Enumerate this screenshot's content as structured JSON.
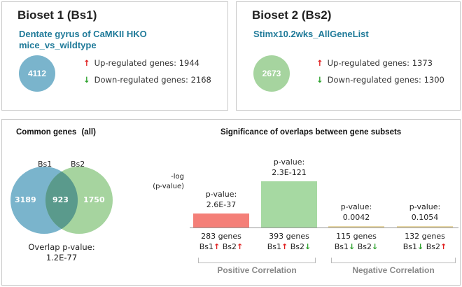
{
  "bioset1": {
    "title": "Bioset 1 (Bs1)",
    "name_line1": "Dentate gyrus of CaMKII HKO",
    "name_line2": "mice_vs_wildtype",
    "total": "4112",
    "up_label": "Up-regulated genes: 1944",
    "down_label": "Down-regulated genes: 2168",
    "circle_color": "#7ab4cc"
  },
  "bioset2": {
    "title": "Bioset 2 (Bs2)",
    "name": "Stimx10.2wks_AllGeneList",
    "total": "2673",
    "up_label": "Up-regulated genes: 1373",
    "down_label": "Down-regulated genes: 1300",
    "circle_color": "#a6d49f"
  },
  "common": {
    "title": "Common genes",
    "title_suffix": "(all)",
    "label_bs1": "Bs1",
    "label_bs2": "Bs2",
    "only_bs1": "3189",
    "overlap": "923",
    "only_bs2": "1750",
    "overlap_pvalue_label": "Overlap p-value:",
    "overlap_pvalue": "1.2E-77"
  },
  "significance": {
    "title": "Significance of overlaps between gene subsets",
    "ylabel_line1": "-log",
    "ylabel_line2": "(p-value)",
    "positive_label": "Positive Correlation",
    "negative_label": "Negative Correlation",
    "pvalue_label": "p-value:",
    "bs1_label": "Bs1",
    "bs2_label": "Bs2"
  },
  "chart_data": {
    "type": "bar",
    "categories": [
      "Bs1 up, Bs2 up",
      "Bs1 up, Bs2 down",
      "Bs1 down, Bs2 down",
      "Bs1 down, Bs2 up"
    ],
    "series": [
      {
        "values_neg_log_p": [
          36.58,
          120.64,
          2.38,
          0.98
        ],
        "p_values": [
          "2.6E-37",
          "2.3E-121",
          "0.0042",
          "0.1054"
        ],
        "gene_counts": [
          "283 genes",
          "393 genes",
          "115 genes",
          "132 genes"
        ],
        "bs1_dir": [
          "up",
          "up",
          "down",
          "down"
        ],
        "bs2_dir": [
          "up",
          "down",
          "down",
          "up"
        ]
      }
    ],
    "bar_colors": [
      "#f47f78",
      "#a6d9a2",
      "#e8d8a8",
      "#e8d8a8"
    ],
    "ylim": [
      0,
      121
    ]
  },
  "colors": {
    "up_arrow": "#e02020",
    "down_arrow": "#2aa02a",
    "venn_left": "#7ab4cc",
    "venn_right": "#a6d49f",
    "venn_overlap": "#5a9a8c"
  }
}
